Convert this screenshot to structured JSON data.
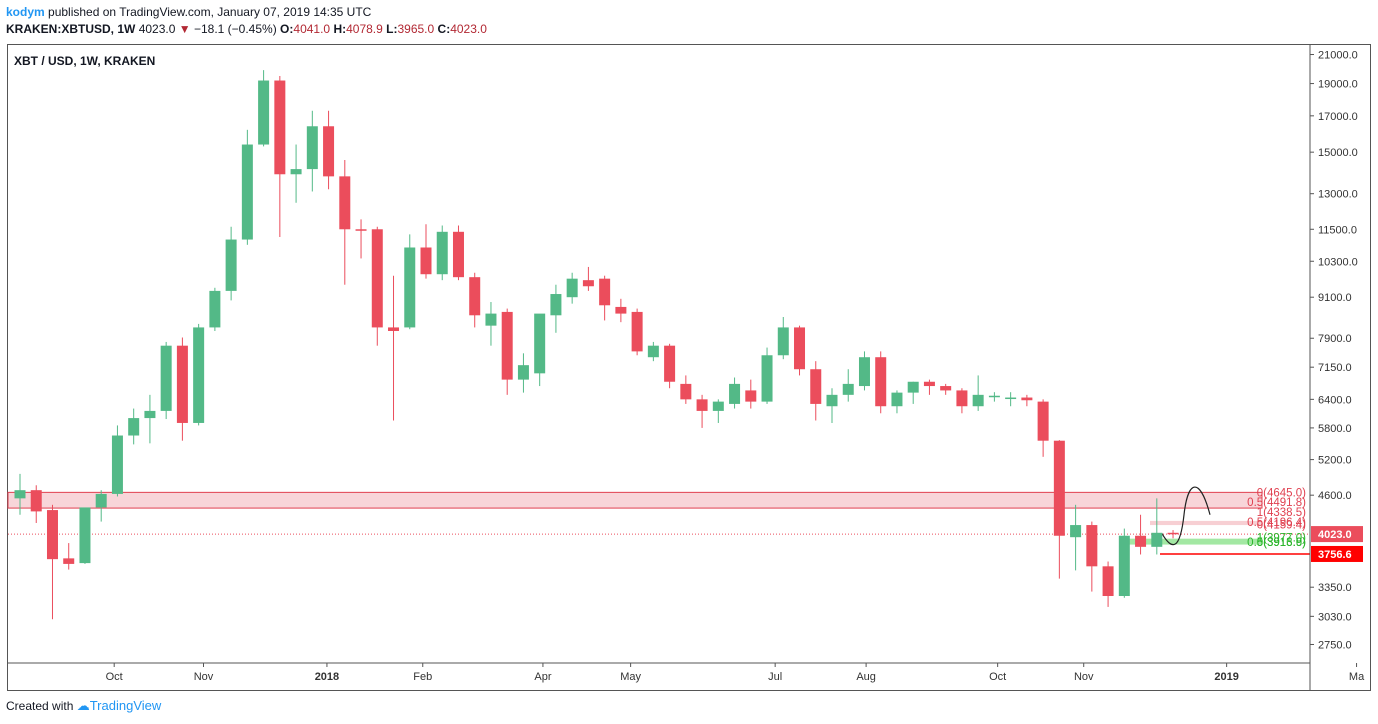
{
  "header": {
    "author": "kodym",
    "published_text": "published on TradingView.com, January 07, 2019 14:35 UTC",
    "symbol": "KRAKEN:XBTUSD, 1W",
    "last": "4023.0",
    "change": "−18.1 (−0.45%)",
    "o_label": "O:",
    "o": "4041.0",
    "h_label": "H:",
    "h": "4078.9",
    "l_label": "L:",
    "l": "3965.0",
    "c_label": "C:",
    "c": "4023.0"
  },
  "footer": {
    "created_with": "Created with",
    "brand": "TradingView"
  },
  "colors": {
    "up": "#53b987",
    "down": "#eb4d5c",
    "zone": "#e04050",
    "support": "#33cc33",
    "axis": "#555555"
  },
  "chart_data": {
    "type": "candlestick",
    "title": "XBT / USD, 1W, KRAKEN",
    "y_scale": "log",
    "ylim": [
      2580,
      21700
    ],
    "y_ticks": [
      "21000.0",
      "19000.0",
      "17000.0",
      "15000.0",
      "13000.0",
      "11500.0",
      "10300.0",
      "9100.0",
      "7900.0",
      "7150.0",
      "6400.0",
      "5800.0",
      "5200.0",
      "4600.0",
      "4023.0",
      "3756.6",
      "3350.0",
      "3030.0",
      "2750.0"
    ],
    "x_ticks": [
      "Oct",
      "Nov",
      "2018",
      "Feb",
      "Apr",
      "May",
      "Jul",
      "Aug",
      "Oct",
      "Nov",
      "2019",
      "Ma"
    ],
    "x_tick_weeks": [
      5.8,
      11.3,
      18.9,
      24.8,
      32.2,
      37.6,
      46.5,
      52.1,
      60.2,
      65.5,
      74.3,
      82.3
    ],
    "candles": [
      {
        "o": 4550,
        "h": 4950,
        "l": 4300,
        "c": 4680
      },
      {
        "o": 4680,
        "h": 4760,
        "l": 4180,
        "c": 4350
      },
      {
        "o": 4370,
        "h": 4450,
        "l": 3000,
        "c": 3690
      },
      {
        "o": 3700,
        "h": 3900,
        "l": 3560,
        "c": 3630
      },
      {
        "o": 3640,
        "h": 4300,
        "l": 3630,
        "c": 4410
      },
      {
        "o": 4410,
        "h": 4680,
        "l": 4200,
        "c": 4620
      },
      {
        "o": 4620,
        "h": 5850,
        "l": 4580,
        "c": 5650
      },
      {
        "o": 5650,
        "h": 6200,
        "l": 5480,
        "c": 6000
      },
      {
        "o": 6000,
        "h": 6500,
        "l": 5500,
        "c": 6150
      },
      {
        "o": 6150,
        "h": 7800,
        "l": 5980,
        "c": 7700
      },
      {
        "o": 7700,
        "h": 7920,
        "l": 5550,
        "c": 5900
      },
      {
        "o": 5900,
        "h": 8300,
        "l": 5850,
        "c": 8200
      },
      {
        "o": 8200,
        "h": 9400,
        "l": 8100,
        "c": 9300
      },
      {
        "o": 9300,
        "h": 11600,
        "l": 9000,
        "c": 11100
      },
      {
        "o": 11100,
        "h": 16200,
        "l": 10900,
        "c": 15400
      },
      {
        "o": 15400,
        "h": 19900,
        "l": 15300,
        "c": 19200
      },
      {
        "o": 19200,
        "h": 19500,
        "l": 11200,
        "c": 13900
      },
      {
        "o": 13900,
        "h": 15400,
        "l": 12600,
        "c": 14150
      },
      {
        "o": 14150,
        "h": 17300,
        "l": 13100,
        "c": 16400
      },
      {
        "o": 16400,
        "h": 17300,
        "l": 13200,
        "c": 13800
      },
      {
        "o": 13800,
        "h": 14600,
        "l": 9500,
        "c": 11500
      },
      {
        "o": 11500,
        "h": 11900,
        "l": 10400,
        "c": 11450
      },
      {
        "o": 11500,
        "h": 11600,
        "l": 7700,
        "c": 8200
      },
      {
        "o": 8200,
        "h": 9800,
        "l": 5950,
        "c": 8100
      },
      {
        "o": 8200,
        "h": 11300,
        "l": 8150,
        "c": 10800
      },
      {
        "o": 10800,
        "h": 11700,
        "l": 9700,
        "c": 9850
      },
      {
        "o": 9850,
        "h": 11650,
        "l": 9650,
        "c": 11400
      },
      {
        "o": 11400,
        "h": 11650,
        "l": 9650,
        "c": 9750
      },
      {
        "o": 9750,
        "h": 9900,
        "l": 8200,
        "c": 8550
      },
      {
        "o": 8250,
        "h": 8950,
        "l": 7700,
        "c": 8600
      },
      {
        "o": 8650,
        "h": 8750,
        "l": 6500,
        "c": 6850
      },
      {
        "o": 6850,
        "h": 7500,
        "l": 6550,
        "c": 7200
      },
      {
        "o": 7000,
        "h": 8500,
        "l": 6700,
        "c": 8600
      },
      {
        "o": 8550,
        "h": 9500,
        "l": 8050,
        "c": 9200
      },
      {
        "o": 9100,
        "h": 9900,
        "l": 8900,
        "c": 9700
      },
      {
        "o": 9650,
        "h": 10100,
        "l": 9300,
        "c": 9450
      },
      {
        "o": 9700,
        "h": 9800,
        "l": 8400,
        "c": 8850
      },
      {
        "o": 8800,
        "h": 9050,
        "l": 8350,
        "c": 8600
      },
      {
        "o": 8650,
        "h": 8750,
        "l": 7450,
        "c": 7550
      },
      {
        "o": 7400,
        "h": 7800,
        "l": 7300,
        "c": 7700
      },
      {
        "o": 7700,
        "h": 7750,
        "l": 6650,
        "c": 6800
      },
      {
        "o": 6750,
        "h": 6950,
        "l": 6300,
        "c": 6400
      },
      {
        "o": 6400,
        "h": 6500,
        "l": 5800,
        "c": 6150
      },
      {
        "o": 6150,
        "h": 6400,
        "l": 5900,
        "c": 6350
      },
      {
        "o": 6300,
        "h": 6900,
        "l": 6200,
        "c": 6750
      },
      {
        "o": 6600,
        "h": 6850,
        "l": 6200,
        "c": 6350
      },
      {
        "o": 6350,
        "h": 7650,
        "l": 6300,
        "c": 7450
      },
      {
        "o": 7450,
        "h": 8500,
        "l": 7350,
        "c": 8200
      },
      {
        "o": 8200,
        "h": 8250,
        "l": 6950,
        "c": 7100
      },
      {
        "o": 7100,
        "h": 7300,
        "l": 5950,
        "c": 6300
      },
      {
        "o": 6250,
        "h": 6650,
        "l": 5900,
        "c": 6500
      },
      {
        "o": 6500,
        "h": 7100,
        "l": 6350,
        "c": 6750
      },
      {
        "o": 6700,
        "h": 7550,
        "l": 6600,
        "c": 7400
      },
      {
        "o": 7400,
        "h": 7550,
        "l": 6100,
        "c": 6250
      },
      {
        "o": 6250,
        "h": 6600,
        "l": 6100,
        "c": 6550
      },
      {
        "o": 6550,
        "h": 6800,
        "l": 6300,
        "c": 6800
      },
      {
        "o": 6800,
        "h": 6850,
        "l": 6500,
        "c": 6700
      },
      {
        "o": 6700,
        "h": 6750,
        "l": 6500,
        "c": 6600
      },
      {
        "o": 6600,
        "h": 6650,
        "l": 6100,
        "c": 6250
      },
      {
        "o": 6250,
        "h": 6950,
        "l": 6150,
        "c": 6500
      },
      {
        "o": 6450,
        "h": 6560,
        "l": 6350,
        "c": 6480
      },
      {
        "o": 6420,
        "h": 6560,
        "l": 6250,
        "c": 6440
      },
      {
        "o": 6440,
        "h": 6500,
        "l": 6250,
        "c": 6380
      },
      {
        "o": 6350,
        "h": 6400,
        "l": 5250,
        "c": 5550
      },
      {
        "o": 5550,
        "h": 5560,
        "l": 3450,
        "c": 4000
      },
      {
        "o": 3980,
        "h": 4450,
        "l": 3550,
        "c": 4150
      },
      {
        "o": 4150,
        "h": 4200,
        "l": 3300,
        "c": 3600
      },
      {
        "o": 3600,
        "h": 3660,
        "l": 3130,
        "c": 3250
      },
      {
        "o": 3250,
        "h": 4100,
        "l": 3230,
        "c": 4000
      },
      {
        "o": 4000,
        "h": 4300,
        "l": 3750,
        "c": 3850
      },
      {
        "o": 3850,
        "h": 4550,
        "l": 3750,
        "c": 4041
      },
      {
        "o": 4041,
        "h": 4079,
        "l": 3965,
        "c": 4023
      }
    ],
    "annotations": {
      "resistance_zone": [
        4400,
        4645
      ],
      "fib_labels": [
        {
          "text": "0(4645.0)",
          "value": 4645
        },
        {
          "text": "0.5(4491.8)",
          "value": 4491.8
        },
        {
          "text": "1(4338.5)",
          "value": 4338.5
        },
        {
          "text": "0.5(4196.4)",
          "value": 4196.4
        },
        {
          "text": "0(4159.4)",
          "value": 4159.4
        },
        {
          "text": "1(3977.0)",
          "value": 3977.0
        },
        {
          "text": "0.5(3913.6)",
          "value": 3913.6
        },
        {
          "text": "0(3916.9)",
          "value": 3916.9
        }
      ],
      "support_zone": [
        3880,
        3960
      ],
      "current_price": 4023.0,
      "stop_level": 3756.6
    }
  }
}
